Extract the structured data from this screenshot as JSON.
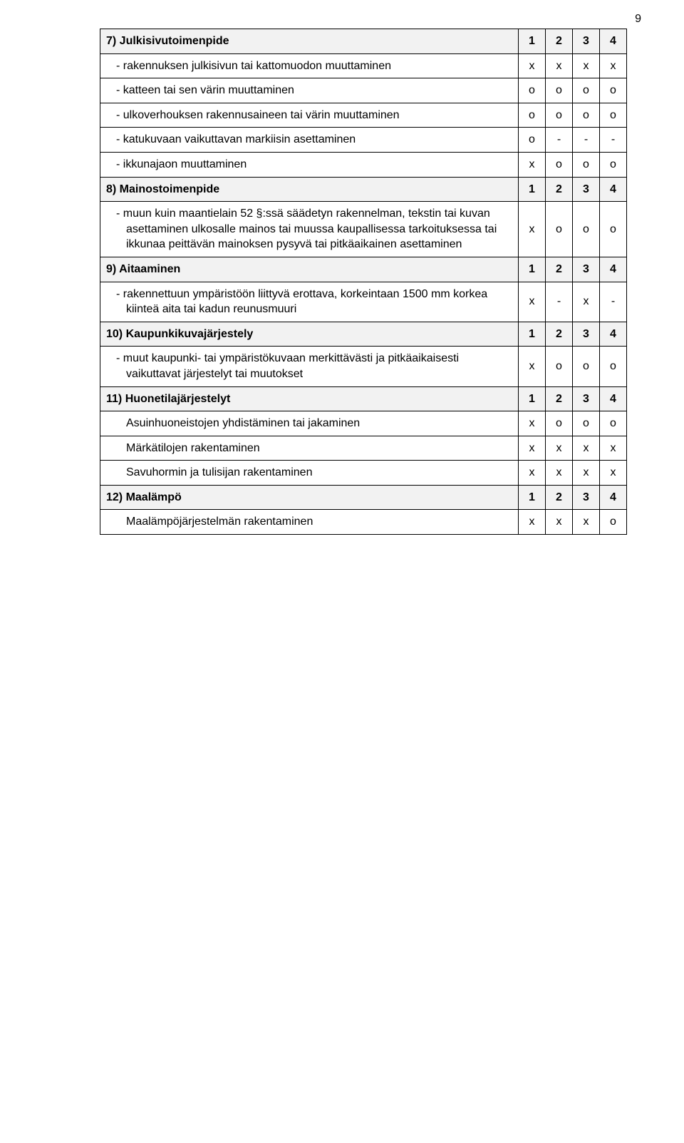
{
  "pageNumber": "9",
  "colors": {
    "sectionBg": "#f2f2f2",
    "border": "#000000",
    "text": "#000000",
    "background": "#ffffff"
  },
  "rows": [
    {
      "type": "section",
      "label": "7) Julkisivutoimenpide",
      "c": [
        "1",
        "2",
        "3",
        "4"
      ]
    },
    {
      "type": "item",
      "label": "-  rakennuksen julkisivun tai kattomuodon muuttaminen",
      "c": [
        "x",
        "x",
        "x",
        "x"
      ]
    },
    {
      "type": "item",
      "label": "-  katteen tai sen värin muuttaminen",
      "c": [
        "o",
        "o",
        "o",
        "o"
      ]
    },
    {
      "type": "item",
      "label": "-  ulkoverhouksen rakennusaineen tai värin muuttaminen",
      "c": [
        "o",
        "o",
        "o",
        "o"
      ]
    },
    {
      "type": "item",
      "label": "-  katukuvaan vaikuttavan markiisin asettaminen",
      "c": [
        "o",
        "-",
        "-",
        "-"
      ]
    },
    {
      "type": "item",
      "label": "-  ikkunajaon muuttaminen",
      "c": [
        "x",
        "o",
        "o",
        "o"
      ]
    },
    {
      "type": "section",
      "label": "8) Mainostoimenpide",
      "c": [
        "1",
        "2",
        "3",
        "4"
      ]
    },
    {
      "type": "item",
      "label": "-  muun kuin maantielain 52 §:ssä säädetyn rakennelman, tekstin tai kuvan asettaminen ulkosalle mainos tai muussa kaupallisessa tarkoituksessa tai ikkunaa peittävän mainoksen pysyvä tai pitkäaikainen asettaminen",
      "c": [
        "x",
        "o",
        "o",
        "o"
      ]
    },
    {
      "type": "section",
      "label": "9) Aitaaminen",
      "c": [
        "1",
        "2",
        "3",
        "4"
      ]
    },
    {
      "type": "item",
      "label": "-  rakennettuun ympäristöön liittyvä erottava, korkeintaan 1500 mm korkea kiinteä aita tai kadun reunusmuuri",
      "c": [
        "x",
        "-",
        "x",
        "-"
      ]
    },
    {
      "type": "section",
      "label": "10) Kaupunkikuvajärjestely",
      "c": [
        "1",
        "2",
        "3",
        "4"
      ]
    },
    {
      "type": "item",
      "label": "-  muut kaupunki- tai ympäristökuvaan merkittävästi ja pitkäaikaisesti vaikuttavat järjestelyt tai muutokset",
      "c": [
        "x",
        "o",
        "o",
        "o"
      ]
    },
    {
      "type": "section",
      "label": "11) Huonetilajärjestelyt",
      "c": [
        "1",
        "2",
        "3",
        "4"
      ]
    },
    {
      "type": "plain",
      "label": "Asuinhuoneistojen yhdistäminen tai jakaminen",
      "c": [
        "x",
        "o",
        "o",
        "o"
      ]
    },
    {
      "type": "plain",
      "label": "Märkätilojen rakentaminen",
      "c": [
        "x",
        "x",
        "x",
        "x"
      ]
    },
    {
      "type": "plain2",
      "label": "Savuhormin ja tulisijan rakentaminen",
      "c": [
        "x",
        "x",
        "x",
        "x"
      ]
    },
    {
      "type": "section",
      "label": "12) Maalämpö",
      "c": [
        "1",
        "2",
        "3",
        "4"
      ]
    },
    {
      "type": "plain",
      "label": "Maalämpöjärjestelmän rakentaminen",
      "c": [
        "x",
        "x",
        "x",
        "o"
      ]
    }
  ]
}
